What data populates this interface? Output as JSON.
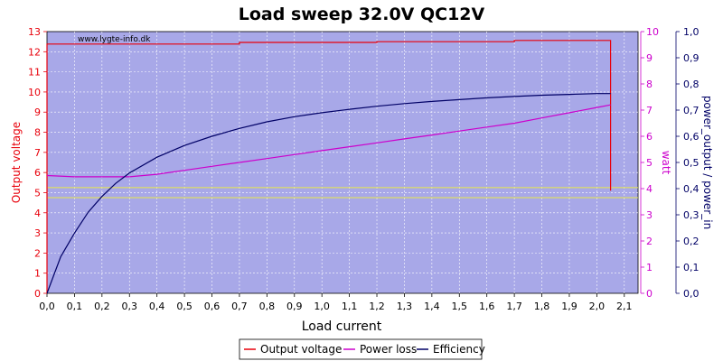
{
  "chart_data": {
    "type": "line",
    "title": "Load sweep 32.0V QC12V",
    "watermark": "www.lygte-info.dk",
    "xlabel": "Load current",
    "x_ticks": [
      "0,0",
      "0,1",
      "0,2",
      "0,3",
      "0,4",
      "0,5",
      "0,6",
      "0,7",
      "0,8",
      "0,9",
      "1,0",
      "1,1",
      "1,2",
      "1,3",
      "1,4",
      "1,5",
      "1,6",
      "1,7",
      "1,8",
      "1,9",
      "2,0",
      "2,1"
    ],
    "xlim": [
      0,
      2.15
    ],
    "axes": {
      "left": {
        "label": "Output voltage",
        "ylim": [
          0,
          13
        ],
        "ticks": [
          "0",
          "1",
          "2",
          "3",
          "4",
          "5",
          "6",
          "7",
          "8",
          "9",
          "10",
          "11",
          "12",
          "13"
        ],
        "color": "#e8000b"
      },
      "right1": {
        "label": "watt",
        "ylim": [
          0,
          10
        ],
        "ticks": [
          "0",
          "1",
          "2",
          "3",
          "4",
          "5",
          "6",
          "7",
          "8",
          "9",
          "10"
        ],
        "color": "#cc00cc"
      },
      "right2": {
        "label": "power_output / power_in",
        "ylim": [
          0,
          1
        ],
        "ticks": [
          "0,0",
          "0,1",
          "0,2",
          "0,3",
          "0,4",
          "0,5",
          "0,6",
          "0,7",
          "0,8",
          "0,9",
          "1,0"
        ],
        "color": "#000066"
      }
    },
    "reference_lines": [
      {
        "axis": "left",
        "y": 4.75,
        "color": "#e8e84a"
      },
      {
        "axis": "left",
        "y": 5.25,
        "color": "#e8e84a"
      }
    ],
    "series": [
      {
        "name": "Output voltage",
        "axis": "left",
        "color": "#e8000b",
        "points": [
          [
            0.0,
            0
          ],
          [
            0.0,
            12.38
          ],
          [
            0.7,
            12.38
          ],
          [
            0.7,
            12.46
          ],
          [
            1.2,
            12.46
          ],
          [
            1.2,
            12.5
          ],
          [
            1.7,
            12.5
          ],
          [
            1.7,
            12.56
          ],
          [
            2.05,
            12.56
          ],
          [
            2.05,
            5.1
          ]
        ]
      },
      {
        "name": "Power loss",
        "axis": "right1",
        "color": "#cc00cc",
        "points": [
          [
            0.0,
            4.5
          ],
          [
            0.1,
            4.45
          ],
          [
            0.2,
            4.45
          ],
          [
            0.3,
            4.45
          ],
          [
            0.4,
            4.55
          ],
          [
            0.5,
            4.7
          ],
          [
            0.6,
            4.85
          ],
          [
            0.7,
            5.0
          ],
          [
            0.8,
            5.15
          ],
          [
            0.9,
            5.3
          ],
          [
            1.0,
            5.45
          ],
          [
            1.1,
            5.6
          ],
          [
            1.2,
            5.75
          ],
          [
            1.3,
            5.9
          ],
          [
            1.4,
            6.05
          ],
          [
            1.5,
            6.2
          ],
          [
            1.6,
            6.35
          ],
          [
            1.7,
            6.5
          ],
          [
            1.8,
            6.7
          ],
          [
            1.9,
            6.9
          ],
          [
            2.0,
            7.1
          ],
          [
            2.05,
            7.2
          ]
        ]
      },
      {
        "name": "Efficiency",
        "axis": "right2",
        "color": "#000066",
        "points": [
          [
            0.0,
            0.0
          ],
          [
            0.05,
            0.14
          ],
          [
            0.1,
            0.23
          ],
          [
            0.15,
            0.31
          ],
          [
            0.2,
            0.37
          ],
          [
            0.25,
            0.42
          ],
          [
            0.3,
            0.46
          ],
          [
            0.4,
            0.52
          ],
          [
            0.5,
            0.565
          ],
          [
            0.6,
            0.6
          ],
          [
            0.7,
            0.63
          ],
          [
            0.8,
            0.655
          ],
          [
            0.9,
            0.675
          ],
          [
            1.0,
            0.69
          ],
          [
            1.1,
            0.703
          ],
          [
            1.2,
            0.715
          ],
          [
            1.3,
            0.725
          ],
          [
            1.4,
            0.733
          ],
          [
            1.5,
            0.74
          ],
          [
            1.6,
            0.747
          ],
          [
            1.7,
            0.752
          ],
          [
            1.8,
            0.757
          ],
          [
            1.9,
            0.76
          ],
          [
            2.0,
            0.763
          ],
          [
            2.05,
            0.763
          ]
        ]
      }
    ],
    "legend": {
      "placement": "bottom-center",
      "entries": [
        "Output voltage",
        "Power loss",
        "Efficiency"
      ]
    },
    "grid": true,
    "plot_background": "#a8a8e8"
  }
}
